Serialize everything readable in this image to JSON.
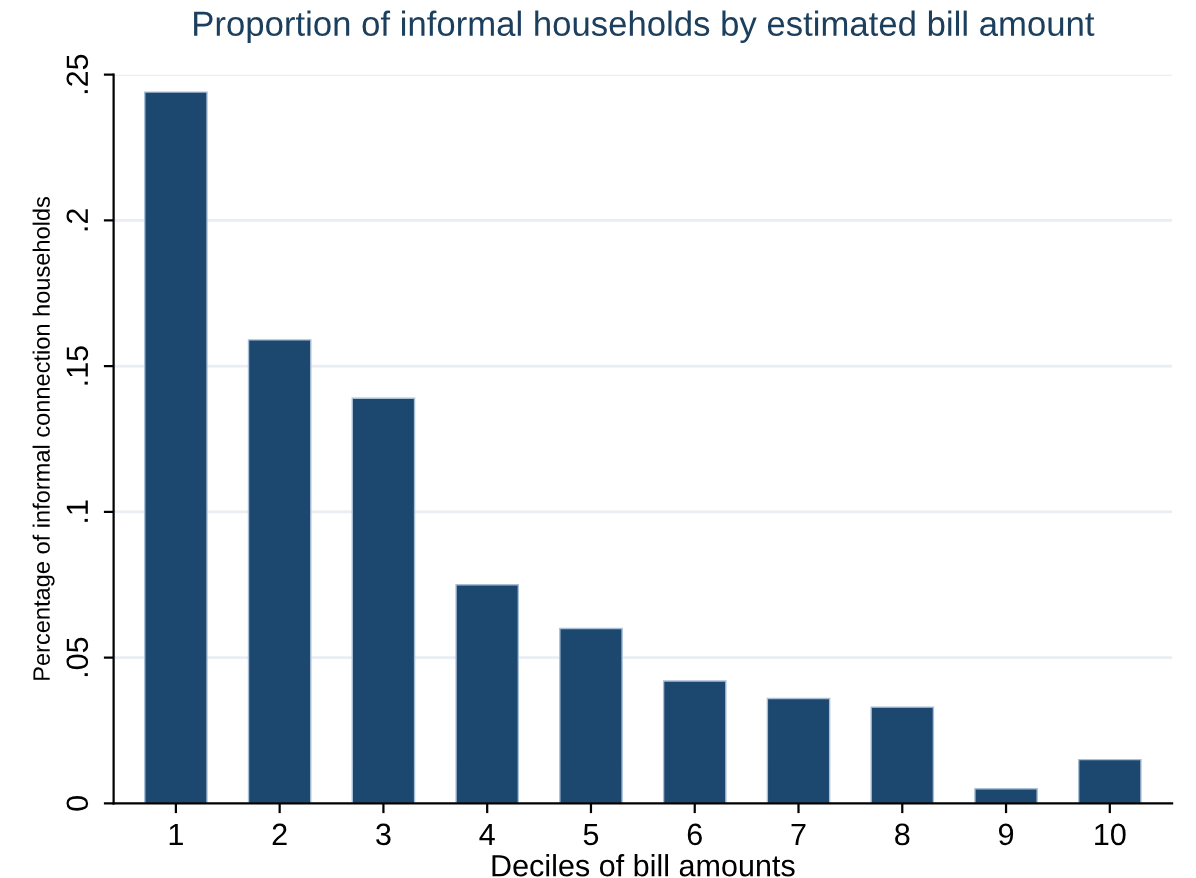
{
  "chart_data": {
    "type": "bar",
    "title": "Proportion of informal households by estimated bill amount",
    "xlabel": "Deciles of bill amounts",
    "ylabel": "Percentage of informal connection households",
    "categories": [
      "1",
      "2",
      "3",
      "4",
      "5",
      "6",
      "7",
      "8",
      "9",
      "10"
    ],
    "values": [
      0.244,
      0.159,
      0.139,
      0.075,
      0.06,
      0.042,
      0.036,
      0.033,
      0.005,
      0.015
    ],
    "color": "#1c476f",
    "ylim": [
      0,
      0.25
    ],
    "yticks": [
      {
        "value": 0,
        "label": "0"
      },
      {
        "value": 0.05,
        "label": ".05"
      },
      {
        "value": 0.1,
        "label": ".1"
      },
      {
        "value": 0.15,
        "label": ".15"
      },
      {
        "value": 0.2,
        "label": ".2"
      },
      {
        "value": 0.25,
        "label": ".25"
      }
    ],
    "grid": "y"
  }
}
